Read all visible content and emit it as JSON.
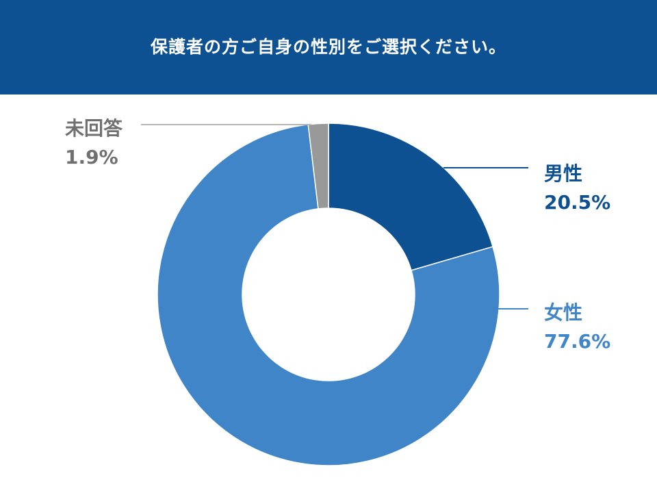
{
  "header": {
    "title": "保護者の方ご自身の性別をご選択ください。"
  },
  "chart_data": {
    "type": "donut",
    "title": "保護者の方ご自身の性別をご選択ください。",
    "unit": "%",
    "slices": [
      {
        "label": "男性",
        "value": 20.5,
        "display": "20.5%",
        "color": "#0d5192",
        "label_color": "#0d5192"
      },
      {
        "label": "女性",
        "value": 77.6,
        "display": "77.6%",
        "color": "#3f85c7",
        "label_color": "#3f85c7"
      },
      {
        "label": "未回答",
        "value": 1.9,
        "display": "1.9%",
        "color": "#999999",
        "label_color": "#707070"
      }
    ]
  }
}
